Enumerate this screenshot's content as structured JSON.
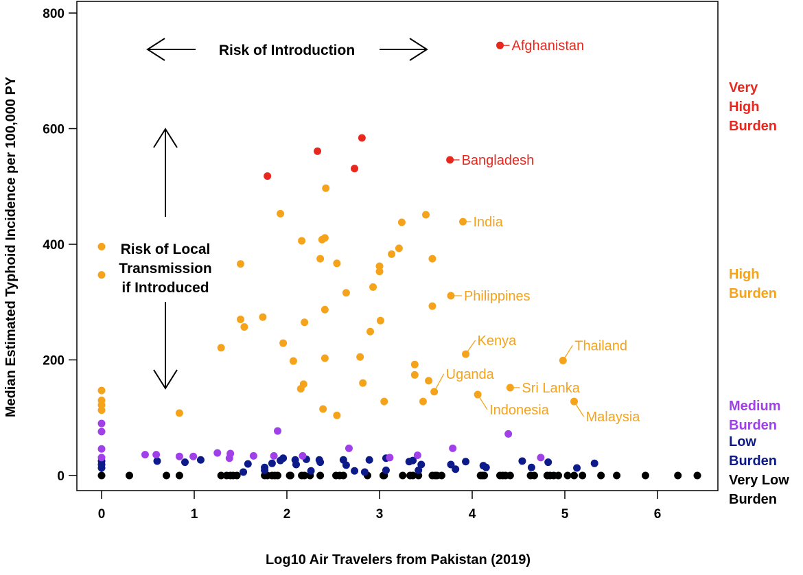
{
  "chart_data": {
    "type": "scatter",
    "title": "",
    "xlabel": "Log10 Air Travelers from Pakistan (2019)",
    "ylabel": "Median Estimated Typhoid Incidence per 100,000 PY",
    "xlim": [
      -0.2,
      6.6
    ],
    "ylim": [
      -30,
      800
    ],
    "xticks": [
      "0",
      "1",
      "2",
      "3",
      "4",
      "5",
      "6"
    ],
    "yticks": [
      "0",
      "200",
      "400",
      "600",
      "800"
    ],
    "grid": false,
    "annotations": {
      "introduction": "Risk of Introduction",
      "transmission": [
        "Risk of Local",
        "Transmission",
        "if Introduced"
      ]
    },
    "series": [
      {
        "name": "Very High Burden",
        "legend_lines": [
          "Very",
          "High",
          "Burden"
        ],
        "color": "#e8281e",
        "points": [
          [
            4.3,
            744
          ],
          [
            1.79,
            518
          ],
          [
            2.33,
            561
          ],
          [
            2.73,
            531
          ],
          [
            2.81,
            584
          ],
          [
            3.76,
            546
          ]
        ]
      },
      {
        "name": "High Burden",
        "legend_lines": [
          "High",
          "Burden"
        ],
        "color": "#f5a31a",
        "points": [
          [
            0,
            396
          ],
          [
            0,
            347
          ],
          [
            0,
            147
          ],
          [
            0,
            130
          ],
          [
            0,
            122
          ],
          [
            0,
            113
          ],
          [
            0.84,
            108
          ],
          [
            1.29,
            221
          ],
          [
            1.5,
            366
          ],
          [
            1.5,
            270
          ],
          [
            1.54,
            257
          ],
          [
            1.74,
            274
          ],
          [
            1.93,
            453
          ],
          [
            1.96,
            229
          ],
          [
            2.07,
            198
          ],
          [
            2.16,
            406
          ],
          [
            2.15,
            150
          ],
          [
            2.18,
            158
          ],
          [
            2.19,
            265
          ],
          [
            2.36,
            375
          ],
          [
            2.38,
            408
          ],
          [
            2.41,
            411
          ],
          [
            2.42,
            497
          ],
          [
            2.41,
            287
          ],
          [
            2.41,
            203
          ],
          [
            2.39,
            115
          ],
          [
            2.54,
            104
          ],
          [
            2.54,
            367
          ],
          [
            2.64,
            316
          ],
          [
            2.79,
            205
          ],
          [
            2.82,
            160
          ],
          [
            2.9,
            249
          ],
          [
            2.93,
            326
          ],
          [
            3.0,
            362
          ],
          [
            3.0,
            353
          ],
          [
            3.01,
            268
          ],
          [
            3.05,
            128
          ],
          [
            3.13,
            383
          ],
          [
            3.21,
            393
          ],
          [
            3.24,
            438
          ],
          [
            3.38,
            192
          ],
          [
            3.38,
            174
          ],
          [
            3.47,
            128
          ],
          [
            3.5,
            451
          ],
          [
            3.53,
            164
          ],
          [
            3.57,
            375
          ],
          [
            3.57,
            293
          ],
          [
            3.59,
            145
          ],
          [
            3.9,
            439
          ],
          [
            3.77,
            311
          ],
          [
            3.93,
            210
          ],
          [
            4.06,
            140
          ],
          [
            4.41,
            152
          ],
          [
            4.98,
            199
          ],
          [
            5.1,
            128
          ]
        ]
      },
      {
        "name": "Medium Burden",
        "legend_lines": [
          "Medium",
          "Burden"
        ],
        "color": "#a040e8",
        "points": [
          [
            0,
            90
          ],
          [
            0,
            76
          ],
          [
            0,
            46
          ],
          [
            0,
            31
          ],
          [
            0.47,
            36
          ],
          [
            0.59,
            36
          ],
          [
            0.84,
            33
          ],
          [
            0.99,
            33
          ],
          [
            1.25,
            39
          ],
          [
            1.39,
            38
          ],
          [
            1.38,
            30
          ],
          [
            1.64,
            34
          ],
          [
            1.9,
            77
          ],
          [
            1.86,
            34
          ],
          [
            2.17,
            34
          ],
          [
            2.67,
            47
          ],
          [
            3.11,
            31
          ],
          [
            3.41,
            35
          ],
          [
            3.79,
            47
          ],
          [
            4.39,
            72
          ],
          [
            4.74,
            31
          ]
        ]
      },
      {
        "name": "Low Burden",
        "legend_lines": [
          "Low",
          "Burden"
        ],
        "color": "#0d1a8a",
        "points": [
          [
            0,
            25
          ],
          [
            0,
            19
          ],
          [
            0,
            13
          ],
          [
            0.6,
            25
          ],
          [
            0.9,
            23
          ],
          [
            1.07,
            27
          ],
          [
            1.53,
            6
          ],
          [
            1.58,
            20
          ],
          [
            1.76,
            9
          ],
          [
            1.76,
            14
          ],
          [
            1.84,
            21
          ],
          [
            1.93,
            26
          ],
          [
            1.96,
            30
          ],
          [
            2.09,
            27
          ],
          [
            2.1,
            19
          ],
          [
            2.21,
            28
          ],
          [
            2.26,
            8
          ],
          [
            2.35,
            27
          ],
          [
            2.36,
            23
          ],
          [
            2.61,
            27
          ],
          [
            2.64,
            18
          ],
          [
            2.73,
            8
          ],
          [
            2.84,
            6
          ],
          [
            2.89,
            27
          ],
          [
            3.07,
            30
          ],
          [
            3.07,
            9
          ],
          [
            3.32,
            24
          ],
          [
            3.36,
            26
          ],
          [
            3.42,
            9
          ],
          [
            3.45,
            19
          ],
          [
            3.77,
            19
          ],
          [
            3.82,
            11
          ],
          [
            3.93,
            24
          ],
          [
            4.12,
            17
          ],
          [
            4.15,
            14
          ],
          [
            4.54,
            25
          ],
          [
            4.64,
            14
          ],
          [
            4.82,
            23
          ],
          [
            5.13,
            13
          ],
          [
            5.32,
            21
          ]
        ]
      },
      {
        "name": "Very Low Burden",
        "legend_lines": [
          "Very Low",
          "Burden"
        ],
        "color": "#000000",
        "points": [
          [
            0,
            0
          ],
          [
            0.3,
            0
          ],
          [
            0.7,
            0
          ],
          [
            0.84,
            0
          ],
          [
            1.29,
            0
          ],
          [
            1.35,
            0
          ],
          [
            1.39,
            0
          ],
          [
            1.42,
            0
          ],
          [
            1.46,
            0
          ],
          [
            1.76,
            0
          ],
          [
            1.79,
            0
          ],
          [
            1.84,
            0
          ],
          [
            1.87,
            0
          ],
          [
            1.9,
            0
          ],
          [
            2.03,
            0
          ],
          [
            2.04,
            0
          ],
          [
            2.16,
            0
          ],
          [
            2.19,
            0
          ],
          [
            2.25,
            0
          ],
          [
            2.36,
            0
          ],
          [
            2.53,
            0
          ],
          [
            2.57,
            0
          ],
          [
            2.61,
            0
          ],
          [
            2.87,
            0
          ],
          [
            3.04,
            0
          ],
          [
            3.05,
            0
          ],
          [
            3.25,
            0
          ],
          [
            3.33,
            0
          ],
          [
            3.36,
            0
          ],
          [
            3.42,
            0
          ],
          [
            3.57,
            0
          ],
          [
            3.6,
            0
          ],
          [
            3.62,
            0
          ],
          [
            3.67,
            0
          ],
          [
            4.09,
            0
          ],
          [
            4.11,
            0
          ],
          [
            4.13,
            0
          ],
          [
            4.3,
            0
          ],
          [
            4.33,
            0
          ],
          [
            4.36,
            0
          ],
          [
            4.41,
            0
          ],
          [
            4.63,
            0
          ],
          [
            4.67,
            0
          ],
          [
            4.81,
            0
          ],
          [
            4.84,
            0
          ],
          [
            4.88,
            0
          ],
          [
            4.93,
            0
          ],
          [
            5.03,
            0
          ],
          [
            5.1,
            0
          ],
          [
            5.19,
            0
          ],
          [
            5.39,
            0
          ],
          [
            5.56,
            0
          ],
          [
            5.87,
            0
          ],
          [
            6.22,
            0
          ],
          [
            6.43,
            0
          ]
        ]
      }
    ],
    "labels": [
      {
        "text": "Afghanistan",
        "x": 4.3,
        "y": 744,
        "series": 0
      },
      {
        "text": "Bangladesh",
        "x": 3.76,
        "y": 546,
        "series": 0
      },
      {
        "text": "India",
        "x": 3.9,
        "y": 439,
        "series": 1
      },
      {
        "text": "Philippines",
        "x": 3.77,
        "y": 311,
        "series": 1
      },
      {
        "text": "Kenya",
        "x": 3.93,
        "y": 210,
        "series": 1
      },
      {
        "text": "Thailand",
        "x": 4.98,
        "y": 199,
        "series": 1
      },
      {
        "text": "Uganda",
        "x": 3.59,
        "y": 145,
        "series": 1
      },
      {
        "text": "Sri Lanka",
        "x": 4.41,
        "y": 152,
        "series": 1
      },
      {
        "text": "Indonesia",
        "x": 4.06,
        "y": 140,
        "series": 1
      },
      {
        "text": "Malaysia",
        "x": 5.1,
        "y": 128,
        "series": 1
      }
    ]
  }
}
